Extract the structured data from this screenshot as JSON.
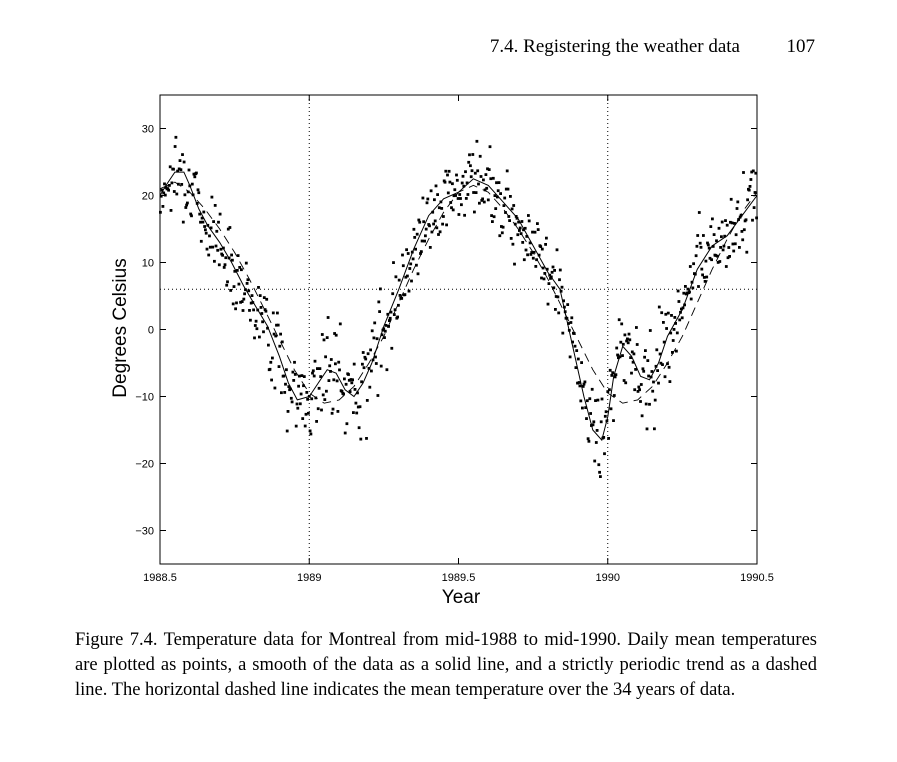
{
  "header": {
    "section_title": "7.4.  Registering the weather data",
    "page_number": "107"
  },
  "chart_data": {
    "type": "scatter",
    "title": "",
    "xlabel": "Year",
    "ylabel": "Degrees Celsius",
    "xlim": [
      1988.5,
      1990.5
    ],
    "ylim": [
      -35,
      35
    ],
    "xticks": [
      1988.5,
      1989,
      1989.5,
      1990,
      1990.5
    ],
    "xtick_labels": [
      "1988.5",
      "1989",
      "1989.5",
      "1990",
      "1990.5"
    ],
    "yticks": [
      -30,
      -20,
      -10,
      0,
      10,
      20,
      30
    ],
    "ytick_labels": [
      "−30",
      "−20",
      "−10",
      "0",
      "10",
      "20",
      "30"
    ],
    "vlines": [
      1989,
      1990
    ],
    "hline_mean": 6,
    "series": [
      {
        "name": "daily mean temperatures",
        "style": "points"
      },
      {
        "name": "smooth of the data",
        "style": "solid",
        "x": [
          1988.5,
          1988.52,
          1988.55,
          1988.58,
          1988.6,
          1988.63,
          1988.66,
          1988.7,
          1988.74,
          1988.78,
          1988.82,
          1988.86,
          1988.9,
          1988.93,
          1988.96,
          1989.0,
          1989.03,
          1989.06,
          1989.09,
          1989.12,
          1989.15,
          1989.18,
          1989.21,
          1989.25,
          1989.3,
          1989.35,
          1989.4,
          1989.45,
          1989.5,
          1989.55,
          1989.6,
          1989.65,
          1989.7,
          1989.75,
          1989.8,
          1989.84,
          1989.88,
          1989.92,
          1989.95,
          1989.98,
          1990.0,
          1990.02,
          1990.05,
          1990.08,
          1990.11,
          1990.14,
          1990.17,
          1990.2,
          1990.25,
          1990.3,
          1990.35,
          1990.4,
          1990.45,
          1990.5
        ],
        "y": [
          20,
          21.5,
          23.5,
          23.5,
          21.5,
          18,
          15.5,
          13,
          10,
          6.5,
          3.5,
          0.5,
          -4,
          -8,
          -10.5,
          -10,
          -8,
          -6,
          -6.5,
          -9,
          -10,
          -8,
          -5,
          0.5,
          6,
          12,
          17,
          19.5,
          20.5,
          22.5,
          21.5,
          19,
          16.5,
          12.5,
          8.5,
          6,
          -2,
          -10,
          -15,
          -16.5,
          -13,
          -7,
          -2.5,
          -4,
          -7,
          -7.5,
          -5,
          -1,
          3,
          9,
          12.5,
          14,
          17,
          20
        ]
      },
      {
        "name": "strictly periodic trend",
        "style": "dashed",
        "x": [
          1988.5,
          1988.55,
          1988.6,
          1988.65,
          1988.7,
          1988.75,
          1988.8,
          1988.85,
          1988.9,
          1988.95,
          1989.0,
          1989.05,
          1989.1,
          1989.15,
          1989.2,
          1989.25,
          1989.3,
          1989.35,
          1989.4,
          1989.45,
          1989.5,
          1989.55,
          1989.6,
          1989.65,
          1989.7,
          1989.75,
          1989.8,
          1989.85,
          1989.9,
          1989.95,
          1990.0,
          1990.05,
          1990.1,
          1990.15,
          1990.2,
          1990.25,
          1990.3,
          1990.35,
          1990.4,
          1990.45,
          1990.5
        ],
        "y": [
          21,
          22,
          20.5,
          18,
          15,
          11.5,
          7.5,
          3,
          -1.5,
          -6,
          -9.5,
          -11,
          -10.5,
          -8.5,
          -5,
          -1,
          4,
          9,
          13.5,
          17.5,
          20.5,
          21.5,
          20.5,
          18,
          15,
          11.5,
          7.5,
          3,
          -1.5,
          -6,
          -9.5,
          -11,
          -10.5,
          -8.5,
          -5,
          -1,
          4,
          9,
          13.5,
          17.5,
          20.5
        ]
      }
    ]
  },
  "caption": "Figure 7.4. Temperature data for Montreal from mid-1988 to mid-1990. Daily mean temperatures are plotted as points, a smooth of the data as a solid line, and a strictly periodic trend as a dashed line. The horizontal dashed line indicates the mean temperature over the 34 years of data."
}
